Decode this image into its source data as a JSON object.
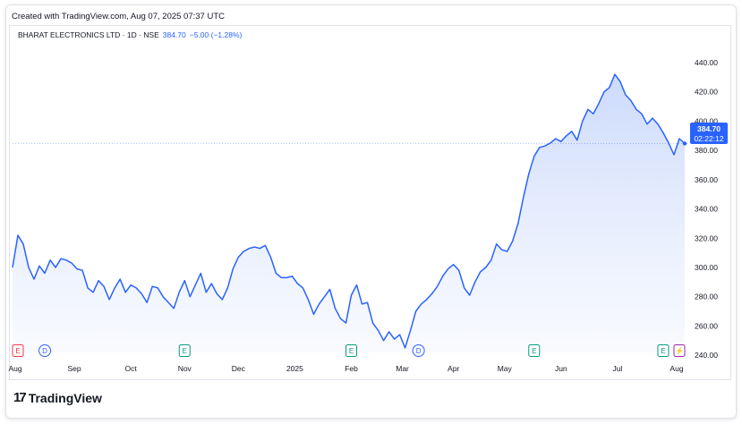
{
  "header": {
    "credit": "Created with TradingView.com, Aug 07, 2025 07:37 UTC"
  },
  "legend": {
    "symbol": "BHARAT ELECTRONICS LTD · 1D · NSE",
    "price": "384.70",
    "change": "−5.00 (−1.28%)"
  },
  "price_tag": {
    "price": "384.70",
    "countdown": "02:22:12"
  },
  "brand": {
    "name": "TradingView",
    "logo_mark": "17"
  },
  "colors": {
    "line": "#2962ff",
    "fill_top": "#c9d8fb",
    "fill_bottom": "#f4f7fe",
    "earnings": "#f23645",
    "dividend": "#2962ff",
    "event_green": "#089981"
  },
  "chart_data": {
    "type": "area",
    "y_ticks": [
      240,
      260,
      280,
      300,
      320,
      340,
      360,
      380,
      400,
      420,
      440
    ],
    "y_tick_labels": [
      "240.00",
      "260.00",
      "280.00",
      "300.00",
      "320.00",
      "340.00",
      "360.00",
      "380.00",
      "400.00",
      "420.00",
      "440.00"
    ],
    "ylim": [
      226,
      462
    ],
    "x_labels": [
      {
        "label": "Aug",
        "t": 1
      },
      {
        "label": "Sep",
        "t": 23
      },
      {
        "label": "Oct",
        "t": 44
      },
      {
        "label": "Nov",
        "t": 64
      },
      {
        "label": "Dec",
        "t": 84
      },
      {
        "label": "2025",
        "t": 105
      },
      {
        "label": "Feb",
        "t": 126
      },
      {
        "label": "Mar",
        "t": 145
      },
      {
        "label": "Apr",
        "t": 164
      },
      {
        "label": "May",
        "t": 183
      },
      {
        "label": "Jun",
        "t": 204
      },
      {
        "label": "Jul",
        "t": 225
      },
      {
        "label": "Aug",
        "t": 247
      }
    ],
    "events": [
      {
        "letter": "E",
        "kind": "earnings",
        "t": 2
      },
      {
        "letter": "D",
        "kind": "dividend",
        "t": 12
      },
      {
        "letter": "E",
        "kind": "green",
        "t": 64
      },
      {
        "letter": "E",
        "kind": "green",
        "t": 126
      },
      {
        "letter": "D",
        "kind": "dividend",
        "t": 151
      },
      {
        "letter": "E",
        "kind": "green",
        "t": 194
      },
      {
        "letter": "E",
        "kind": "green",
        "t": 242
      },
      {
        "letter": "⚡",
        "kind": "split",
        "t": 248
      }
    ],
    "series": [
      {
        "points": [
          [
            0,
            300
          ],
          [
            2,
            322
          ],
          [
            4,
            316
          ],
          [
            6,
            300
          ],
          [
            8,
            292
          ],
          [
            10,
            301
          ],
          [
            12,
            296
          ],
          [
            14,
            305
          ],
          [
            16,
            300
          ],
          [
            18,
            306
          ],
          [
            20,
            305
          ],
          [
            22,
            303
          ],
          [
            24,
            299
          ],
          [
            26,
            298
          ],
          [
            28,
            286
          ],
          [
            30,
            283
          ],
          [
            32,
            291
          ],
          [
            34,
            287
          ],
          [
            36,
            278
          ],
          [
            38,
            286
          ],
          [
            40,
            292
          ],
          [
            42,
            283
          ],
          [
            44,
            288
          ],
          [
            46,
            286
          ],
          [
            48,
            282
          ],
          [
            50,
            276
          ],
          [
            52,
            287
          ],
          [
            54,
            286
          ],
          [
            56,
            280
          ],
          [
            58,
            276
          ],
          [
            60,
            272
          ],
          [
            62,
            283
          ],
          [
            64,
            291
          ],
          [
            66,
            280
          ],
          [
            68,
            288
          ],
          [
            70,
            296
          ],
          [
            72,
            283
          ],
          [
            74,
            289
          ],
          [
            76,
            282
          ],
          [
            78,
            278
          ],
          [
            80,
            286
          ],
          [
            82,
            299
          ],
          [
            84,
            307
          ],
          [
            86,
            311
          ],
          [
            88,
            313
          ],
          [
            90,
            314
          ],
          [
            92,
            313
          ],
          [
            94,
            315
          ],
          [
            96,
            307
          ],
          [
            98,
            296
          ],
          [
            100,
            293
          ],
          [
            102,
            293
          ],
          [
            104,
            294
          ],
          [
            106,
            289
          ],
          [
            108,
            286
          ],
          [
            110,
            278
          ],
          [
            112,
            268
          ],
          [
            114,
            275
          ],
          [
            116,
            280
          ],
          [
            118,
            285
          ],
          [
            120,
            272
          ],
          [
            122,
            265
          ],
          [
            124,
            262
          ],
          [
            126,
            281
          ],
          [
            128,
            288
          ],
          [
            130,
            275
          ],
          [
            132,
            276
          ],
          [
            134,
            262
          ],
          [
            136,
            257
          ],
          [
            138,
            250
          ],
          [
            140,
            256
          ],
          [
            142,
            251
          ],
          [
            144,
            254
          ],
          [
            146,
            245
          ],
          [
            148,
            257
          ],
          [
            150,
            270
          ],
          [
            152,
            275
          ],
          [
            154,
            278
          ],
          [
            156,
            282
          ],
          [
            158,
            287
          ],
          [
            160,
            294
          ],
          [
            162,
            299
          ],
          [
            164,
            302
          ],
          [
            166,
            298
          ],
          [
            168,
            286
          ],
          [
            170,
            281
          ],
          [
            172,
            290
          ],
          [
            174,
            297
          ],
          [
            176,
            300
          ],
          [
            178,
            305
          ],
          [
            180,
            316
          ],
          [
            182,
            312
          ],
          [
            184,
            311
          ],
          [
            186,
            318
          ],
          [
            188,
            330
          ],
          [
            190,
            348
          ],
          [
            192,
            364
          ],
          [
            194,
            376
          ],
          [
            196,
            382
          ],
          [
            198,
            383
          ],
          [
            200,
            385
          ],
          [
            202,
            388
          ],
          [
            204,
            386
          ],
          [
            206,
            390
          ],
          [
            208,
            393
          ],
          [
            210,
            387
          ],
          [
            212,
            400
          ],
          [
            214,
            408
          ],
          [
            216,
            405
          ],
          [
            218,
            412
          ],
          [
            220,
            420
          ],
          [
            222,
            423
          ],
          [
            224,
            432
          ],
          [
            226,
            427
          ],
          [
            228,
            418
          ],
          [
            230,
            414
          ],
          [
            232,
            408
          ],
          [
            234,
            405
          ],
          [
            236,
            398
          ],
          [
            238,
            402
          ],
          [
            240,
            398
          ],
          [
            242,
            392
          ],
          [
            244,
            385
          ],
          [
            246,
            377
          ],
          [
            248,
            388
          ],
          [
            250,
            384.7
          ]
        ]
      }
    ],
    "last_price": 384.7
  }
}
